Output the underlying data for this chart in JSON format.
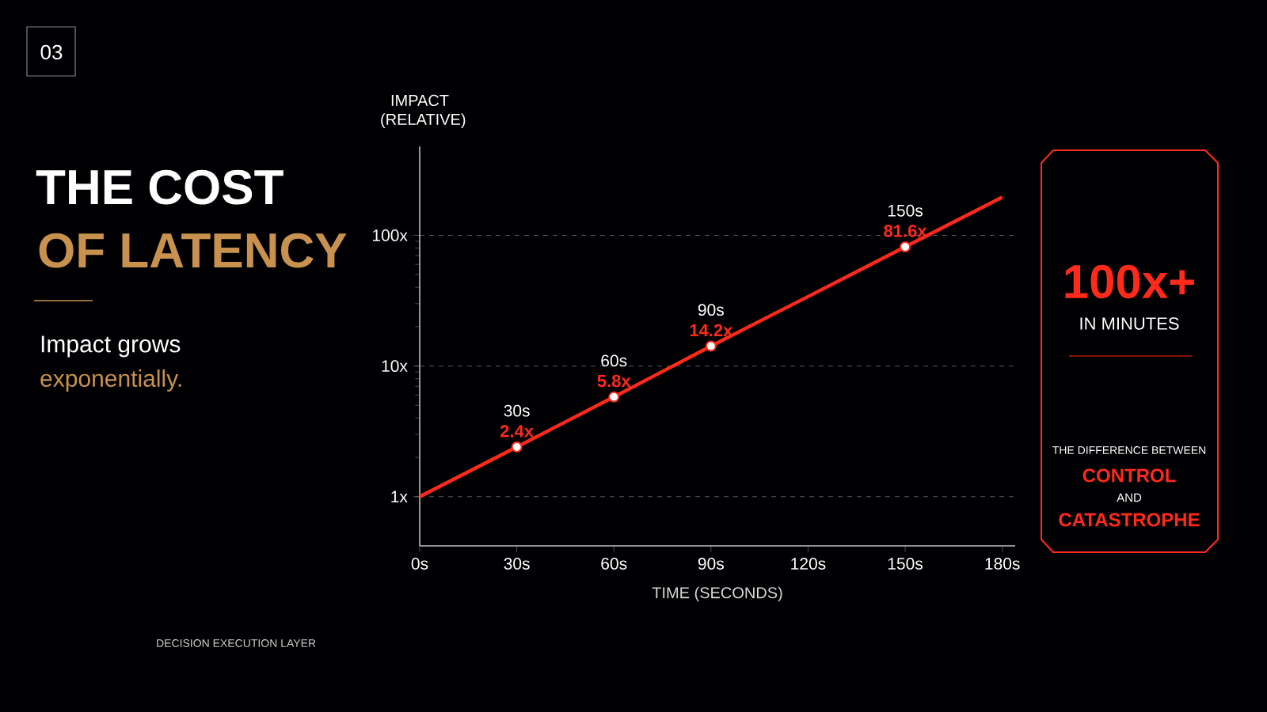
{
  "chart_data": {
    "type": "line",
    "title": "THE COST",
    "subtitle": "OF LATENCY",
    "xlabel": "TIME (SECONDS)",
    "ylabel": "IMPACT (RELATIVE)",
    "x": [
      0,
      30,
      60,
      90,
      120,
      150,
      180
    ],
    "series": [
      {
        "color": "#ff2a1a",
        "values": [
          1,
          2.4,
          5.8,
          14.2,
          34,
          81.6,
          196
        ],
        "value_labels": [
          null,
          "2.4x",
          "5.8x",
          "14.2x",
          null,
          "81.6x",
          null
        ]
      }
    ],
    "log": "y",
    "xlim": [
      0,
      184
    ],
    "ylim": [
      0.42,
      480
    ],
    "xticks": [
      {
        "value": 0,
        "label": "0s"
      },
      {
        "value": 30,
        "label": "30s"
      },
      {
        "value": 60,
        "label": "60s"
      },
      {
        "value": 90,
        "label": "90s"
      },
      {
        "value": 120,
        "label": "120s"
      },
      {
        "value": 150,
        "label": "150s"
      },
      {
        "value": 180,
        "label": "180s"
      }
    ],
    "yticks": [
      {
        "value": 1,
        "label": "1x"
      },
      {
        "value": 10,
        "label": "10x"
      },
      {
        "value": 100,
        "label": "100x"
      }
    ],
    "grid": "y",
    "marker": "circle",
    "line_style": "solid",
    "annotations": [
      "03",
      "Impact grows",
      "exponentially.",
      "100x+",
      "IN MINUTES",
      "THE DIFFERENCE BETWEEN",
      "CONTROL",
      "AND",
      "CATASTROPHE",
      "DECISION EXECUTION LAYER",
      {
        "text": "30s",
        "x": 30,
        "y": 2.4
      },
      {
        "text": "60s",
        "x": 60,
        "y": 5.8
      },
      {
        "text": "90s",
        "x": 90,
        "y": 14.2
      },
      {
        "text": "150s",
        "x": 150,
        "y": 81.6
      }
    ]
  }
}
